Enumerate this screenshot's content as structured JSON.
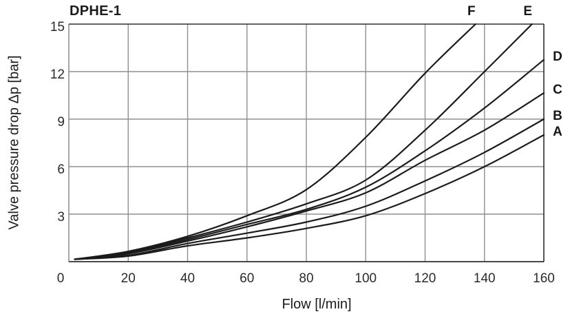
{
  "title": "DPHE-1",
  "colors": {
    "curve": "#1b1b1b",
    "grid": "#8f8f8f",
    "border": "#2e2e2e",
    "text": "#1b1b1b"
  },
  "chart_data": {
    "type": "line",
    "title": "DPHE-1",
    "xlabel": "Flow [l/min]",
    "ylabel": "Valve pressure drop Δp [bar]",
    "xlim": [
      0,
      160
    ],
    "ylim": [
      0,
      15
    ],
    "x_ticks": [
      0,
      20,
      40,
      60,
      80,
      100,
      120,
      140,
      160
    ],
    "y_ticks_labeled": [
      3,
      6,
      9,
      12,
      15
    ],
    "grid": true,
    "legend_position": "curve-end-labels",
    "series": [
      {
        "name": "A",
        "x": [
          2,
          20,
          40,
          60,
          80,
          100,
          120,
          140,
          160
        ],
        "y": [
          0.15,
          0.35,
          1.0,
          1.5,
          2.1,
          2.9,
          4.3,
          6.0,
          8.0
        ]
      },
      {
        "name": "B",
        "x": [
          2,
          20,
          40,
          60,
          80,
          100,
          120,
          140,
          160
        ],
        "y": [
          0.15,
          0.4,
          1.15,
          1.8,
          2.5,
          3.5,
          5.1,
          6.9,
          9.0
        ]
      },
      {
        "name": "C",
        "x": [
          2,
          20,
          40,
          60,
          80,
          100,
          120,
          140,
          160
        ],
        "y": [
          0.15,
          0.5,
          1.3,
          2.2,
          3.2,
          4.35,
          6.4,
          8.3,
          10.65
        ]
      },
      {
        "name": "D",
        "x": [
          2,
          20,
          40,
          60,
          80,
          100,
          120,
          140,
          160
        ],
        "y": [
          0.15,
          0.55,
          1.4,
          2.35,
          3.3,
          4.7,
          7.0,
          9.7,
          12.75
        ]
      },
      {
        "name": "E",
        "x": [
          2,
          20,
          40,
          60,
          80,
          100,
          120,
          140,
          156
        ],
        "y": [
          0.15,
          0.6,
          1.5,
          2.5,
          3.65,
          5.15,
          8.3,
          12.0,
          15.0
        ]
      },
      {
        "name": "F",
        "x": [
          2,
          20,
          40,
          60,
          80,
          100,
          120,
          137
        ],
        "y": [
          0.15,
          0.65,
          1.6,
          2.9,
          4.55,
          7.85,
          11.9,
          15.0
        ]
      }
    ]
  }
}
